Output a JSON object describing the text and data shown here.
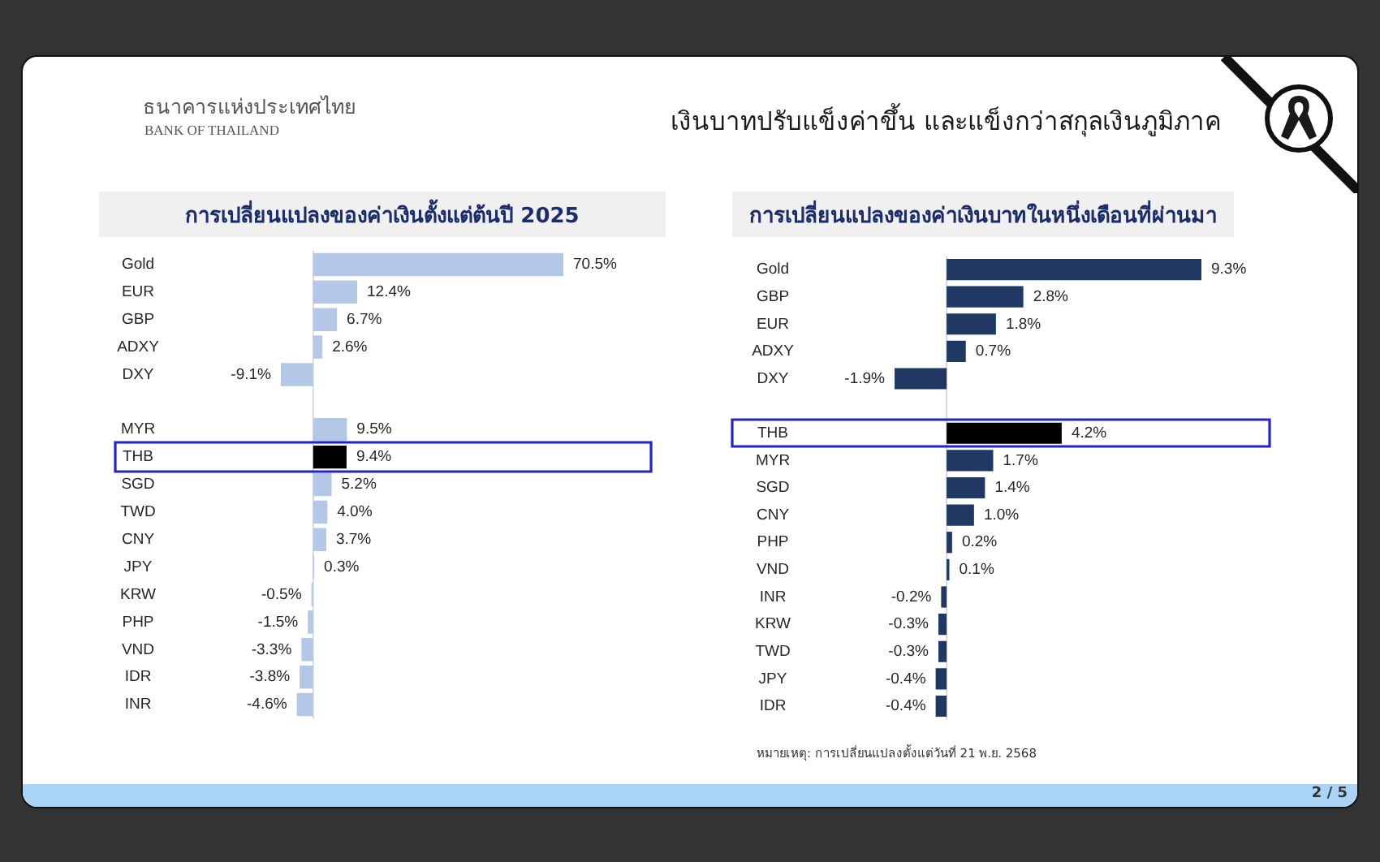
{
  "chart_data": [
    {
      "type": "bar",
      "orientation": "horizontal",
      "title": "การเปลี่ยนแปลงของค่าเงินตั้งแต่ต้นปี 2025",
      "categories": [
        "Gold",
        "EUR",
        "GBP",
        "ADXY",
        "DXY",
        null,
        "MYR",
        "THB",
        "SGD",
        "TWD",
        "CNY",
        "JPY",
        "KRW",
        "PHP",
        "VND",
        "IDR",
        "INR"
      ],
      "values": [
        70.5,
        12.4,
        6.7,
        2.6,
        -9.1,
        null,
        9.5,
        9.4,
        5.2,
        4.0,
        3.7,
        0.3,
        -0.5,
        -1.5,
        -3.3,
        -3.8,
        -4.6
      ],
      "colors": [
        "#b4c7e7",
        "#b4c7e7",
        "#b4c7e7",
        "#b4c7e7",
        "#b4c7e7",
        "#b4c7e7",
        "#b4c7e7",
        "#000000",
        "#b4c7e7",
        "#b4c7e7",
        "#b4c7e7",
        "#b4c7e7",
        "#b4c7e7",
        "#b4c7e7",
        "#b4c7e7",
        "#b4c7e7",
        "#b4c7e7"
      ],
      "value_labels": [
        "70.5%",
        "12.4%",
        "6.7%",
        "2.6%",
        "-9.1%",
        null,
        "9.5%",
        "9.4%",
        "5.2%",
        "4.0%",
        "3.7%",
        "0.3%",
        "-0.5%",
        "-1.5%",
        "-3.3%",
        "-3.8%",
        "-4.6%"
      ],
      "annotations": [
        "ธนาคารแห่งประเทศไทย",
        "BANK OF THAILAND",
        "เงินบาทปรับแข็งค่าขึ้น และแข็งกว่าสกุลเงินภูมิภาค",
        "2 / 5"
      ]
    },
    {
      "type": "bar",
      "orientation": "horizontal",
      "title": "การเปลี่ยนแปลงของค่าเงินบาทในหนึ่งเดือนที่ผ่านมา",
      "categories": [
        "Gold",
        "GBP",
        "EUR",
        "ADXY",
        "DXY",
        null,
        "THB",
        "MYR",
        "SGD",
        "CNY",
        "PHP",
        "VND",
        "INR",
        "KRW",
        "TWD",
        "JPY",
        "IDR"
      ],
      "values": [
        9.3,
        2.8,
        1.8,
        0.7,
        -1.9,
        null,
        4.2,
        1.7,
        1.4,
        1.0,
        0.2,
        0.1,
        -0.2,
        -0.3,
        -0.3,
        -0.4,
        -0.4
      ],
      "colors": [
        "#1f3864",
        "#1f3864",
        "#1f3864",
        "#1f3864",
        "#1f3864",
        "#1f3864",
        "#000000",
        "#1f3864",
        "#1f3864",
        "#1f3864",
        "#1f3864",
        "#1f3864",
        "#1f3864",
        "#1f3864",
        "#1f3864",
        "#1f3864",
        "#1f3864"
      ],
      "value_labels": [
        "9.3%",
        "2.8%",
        "1.8%",
        "0.7%",
        "-1.9%",
        null,
        "4.2%",
        "1.7%",
        "1.4%",
        "1.0%",
        "0.2%",
        "0.1%",
        "-0.2%",
        "-0.3%",
        "-0.3%",
        "-0.4%",
        "-0.4%"
      ],
      "annotations": [
        "หมายเหตุ: การเปลี่ยนแปลงตั้งแต่วันที่ 21 พ.ย. 2568"
      ]
    }
  ]
}
